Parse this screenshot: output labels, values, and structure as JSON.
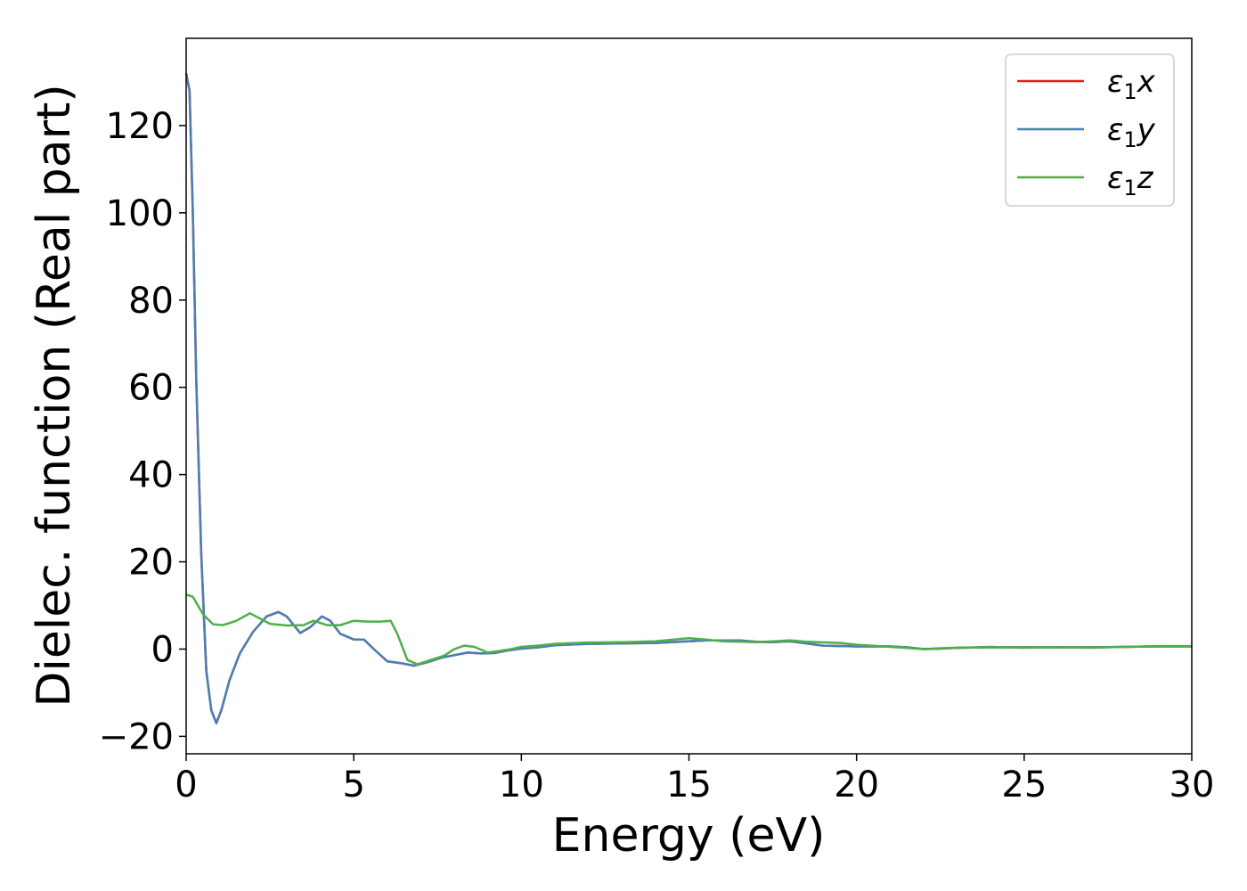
{
  "chart_data": {
    "type": "line",
    "title": "",
    "xlabel": "Energy (eV)",
    "ylabel": "Dielec. function (Real part)",
    "xlim": [
      0,
      30
    ],
    "ylim": [
      -24,
      140
    ],
    "x_ticks": [
      0,
      5,
      10,
      15,
      20,
      25,
      30
    ],
    "y_ticks": [
      -20,
      0,
      20,
      40,
      60,
      80,
      100,
      120
    ],
    "x_tick_labels": [
      "0",
      "5",
      "10",
      "15",
      "20",
      "25",
      "30"
    ],
    "y_tick_labels": [
      "−20",
      "0",
      "20",
      "40",
      "60",
      "80",
      "100",
      "120"
    ],
    "grid": false,
    "legend_position": "top-right",
    "series": [
      {
        "name": "ε₁x",
        "legend_main": "ε",
        "legend_sub": "1",
        "legend_suffix": "x",
        "color": "#e41a1c",
        "points": [
          [
            0,
            132
          ],
          [
            0.1,
            128
          ],
          [
            0.2,
            100
          ],
          [
            0.3,
            62
          ],
          [
            0.45,
            22
          ],
          [
            0.6,
            -5
          ],
          [
            0.75,
            -14
          ],
          [
            0.9,
            -17
          ],
          [
            1.05,
            -14
          ],
          [
            1.3,
            -7
          ],
          [
            1.6,
            -1
          ],
          [
            2.0,
            4
          ],
          [
            2.4,
            7.5
          ],
          [
            2.75,
            8.5
          ],
          [
            3.0,
            7.5
          ],
          [
            3.4,
            3.7
          ],
          [
            3.7,
            5
          ],
          [
            4.05,
            7.5
          ],
          [
            4.3,
            6.5
          ],
          [
            4.6,
            3.5
          ],
          [
            5.0,
            2.2
          ],
          [
            5.3,
            2.2
          ],
          [
            5.6,
            0
          ],
          [
            6.0,
            -2.8
          ],
          [
            6.4,
            -3.2
          ],
          [
            6.8,
            -3.8
          ],
          [
            7.2,
            -3
          ],
          [
            7.6,
            -2
          ],
          [
            8.0,
            -1.4
          ],
          [
            8.4,
            -0.8
          ],
          [
            8.8,
            -1
          ],
          [
            9.2,
            -0.9
          ],
          [
            9.6,
            -0.3
          ],
          [
            10.0,
            0.1
          ],
          [
            10.5,
            0.4
          ],
          [
            11,
            0.9
          ],
          [
            12,
            1.2
          ],
          [
            13,
            1.3
          ],
          [
            14,
            1.4
          ],
          [
            15,
            1.8
          ],
          [
            15.5,
            2.0
          ],
          [
            16,
            2.0
          ],
          [
            16.5,
            2.0
          ],
          [
            17,
            1.7
          ],
          [
            17.5,
            1.6
          ],
          [
            18,
            1.8
          ],
          [
            18.5,
            1.3
          ],
          [
            19,
            0.8
          ],
          [
            20,
            0.6
          ],
          [
            21,
            0.6
          ],
          [
            21.5,
            0.4
          ],
          [
            22,
            0
          ],
          [
            22.5,
            0.1
          ],
          [
            23,
            0.3
          ],
          [
            24,
            0.4
          ],
          [
            25,
            0.4
          ],
          [
            26,
            0.4
          ],
          [
            27,
            0.4
          ],
          [
            28,
            0.5
          ],
          [
            29,
            0.6
          ],
          [
            30,
            0.6
          ]
        ]
      },
      {
        "name": "ε₁y",
        "legend_main": "ε",
        "legend_sub": "1",
        "legend_suffix": "y",
        "color": "#4a7fb5",
        "points": [
          [
            0,
            132
          ],
          [
            0.1,
            128
          ],
          [
            0.2,
            100
          ],
          [
            0.3,
            62
          ],
          [
            0.45,
            22
          ],
          [
            0.6,
            -5
          ],
          [
            0.75,
            -14
          ],
          [
            0.9,
            -17
          ],
          [
            1.05,
            -14
          ],
          [
            1.3,
            -7
          ],
          [
            1.6,
            -1
          ],
          [
            2.0,
            4
          ],
          [
            2.4,
            7.5
          ],
          [
            2.75,
            8.5
          ],
          [
            3.0,
            7.5
          ],
          [
            3.4,
            3.7
          ],
          [
            3.7,
            5
          ],
          [
            4.05,
            7.5
          ],
          [
            4.3,
            6.5
          ],
          [
            4.6,
            3.5
          ],
          [
            5.0,
            2.2
          ],
          [
            5.3,
            2.2
          ],
          [
            5.6,
            0
          ],
          [
            6.0,
            -2.8
          ],
          [
            6.4,
            -3.2
          ],
          [
            6.8,
            -3.8
          ],
          [
            7.2,
            -3
          ],
          [
            7.6,
            -2
          ],
          [
            8.0,
            -1.4
          ],
          [
            8.4,
            -0.8
          ],
          [
            8.8,
            -1
          ],
          [
            9.2,
            -0.9
          ],
          [
            9.6,
            -0.3
          ],
          [
            10.0,
            0.1
          ],
          [
            10.5,
            0.4
          ],
          [
            11,
            0.9
          ],
          [
            12,
            1.2
          ],
          [
            13,
            1.3
          ],
          [
            14,
            1.4
          ],
          [
            15,
            1.8
          ],
          [
            15.5,
            2.0
          ],
          [
            16,
            2.0
          ],
          [
            16.5,
            2.0
          ],
          [
            17,
            1.7
          ],
          [
            17.5,
            1.6
          ],
          [
            18,
            1.8
          ],
          [
            18.5,
            1.3
          ],
          [
            19,
            0.8
          ],
          [
            20,
            0.6
          ],
          [
            21,
            0.6
          ],
          [
            21.5,
            0.4
          ],
          [
            22,
            0
          ],
          [
            22.5,
            0.1
          ],
          [
            23,
            0.3
          ],
          [
            24,
            0.4
          ],
          [
            25,
            0.4
          ],
          [
            26,
            0.4
          ],
          [
            27,
            0.4
          ],
          [
            28,
            0.5
          ],
          [
            29,
            0.6
          ],
          [
            30,
            0.6
          ]
        ]
      },
      {
        "name": "ε₁z",
        "legend_main": "ε",
        "legend_sub": "1",
        "legend_suffix": "z",
        "color": "#4daf4a",
        "points": [
          [
            0,
            12.5
          ],
          [
            0.2,
            12
          ],
          [
            0.5,
            8
          ],
          [
            0.8,
            5.7
          ],
          [
            1.1,
            5.5
          ],
          [
            1.5,
            6.5
          ],
          [
            1.9,
            8.2
          ],
          [
            2.2,
            7
          ],
          [
            2.5,
            5.8
          ],
          [
            3.0,
            5.4
          ],
          [
            3.5,
            5.5
          ],
          [
            3.8,
            6.5
          ],
          [
            4.2,
            5.5
          ],
          [
            4.6,
            5.5
          ],
          [
            5.0,
            6.5
          ],
          [
            5.4,
            6.3
          ],
          [
            5.8,
            6.3
          ],
          [
            6.1,
            6.5
          ],
          [
            6.3,
            3.5
          ],
          [
            6.6,
            -2.5
          ],
          [
            6.9,
            -3.5
          ],
          [
            7.3,
            -2.5
          ],
          [
            7.7,
            -1.5
          ],
          [
            8.0,
            0
          ],
          [
            8.3,
            0.8
          ],
          [
            8.6,
            0.5
          ],
          [
            9.0,
            -0.8
          ],
          [
            9.3,
            -0.5
          ],
          [
            9.7,
            0
          ],
          [
            10.0,
            0.5
          ],
          [
            10.5,
            0.8
          ],
          [
            11,
            1.2
          ],
          [
            12,
            1.5
          ],
          [
            13,
            1.6
          ],
          [
            14,
            1.8
          ],
          [
            15,
            2.5
          ],
          [
            15.5,
            2.2
          ],
          [
            16,
            1.8
          ],
          [
            17,
            1.6
          ],
          [
            18,
            2.0
          ],
          [
            18.5,
            1.7
          ],
          [
            19.5,
            1.4
          ],
          [
            20,
            1.0
          ],
          [
            21,
            0.5
          ],
          [
            22,
            0
          ],
          [
            22.5,
            0.2
          ],
          [
            23,
            0.3
          ],
          [
            24,
            0.5
          ],
          [
            25,
            0.3
          ],
          [
            26,
            0.4
          ],
          [
            27,
            0.3
          ],
          [
            28,
            0.5
          ],
          [
            29,
            0.7
          ],
          [
            30,
            0.7
          ]
        ]
      }
    ]
  }
}
